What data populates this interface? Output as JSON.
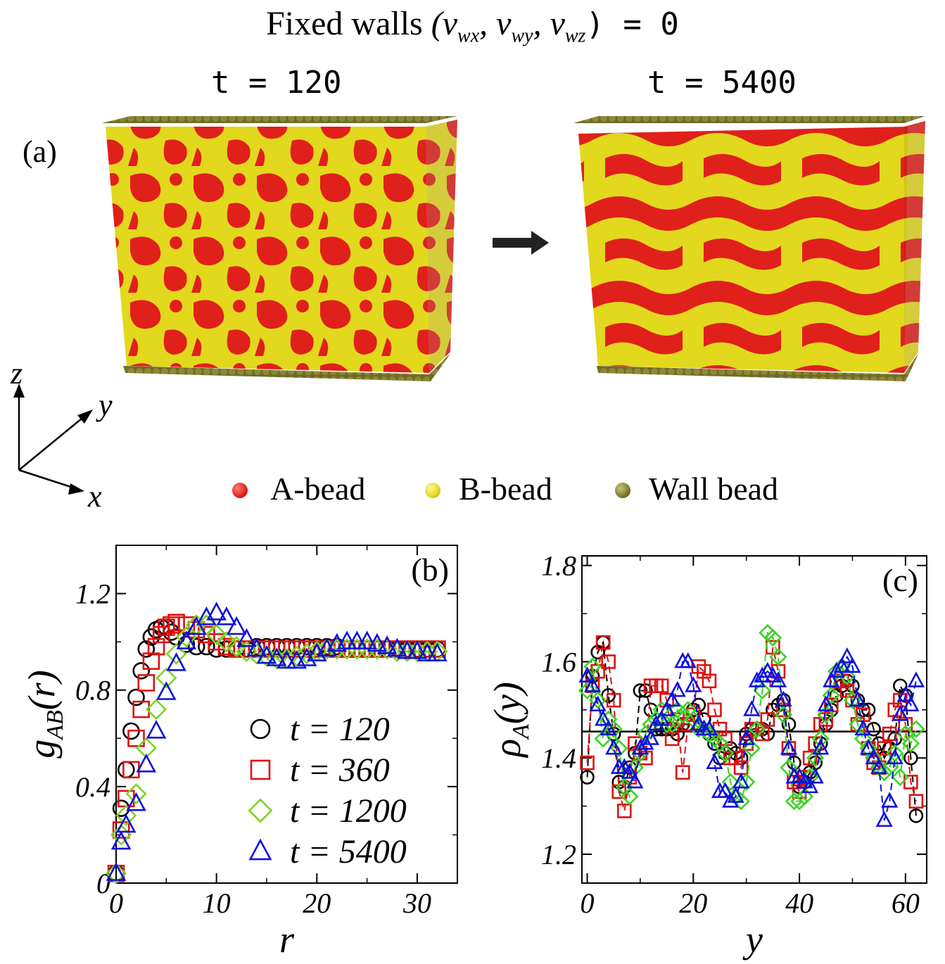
{
  "figure": {
    "title_prefix": "Fixed walls ",
    "title_vars": "(v",
    "title_sub1": "wx",
    "title_sub2": "wy",
    "title_sub3": "wz",
    "title_suffix": ") = 0",
    "panel_a_label": "(a)",
    "time_left": "t = 120",
    "time_right": "t = 5400",
    "bead_legend": [
      "A-bead",
      "B-bead",
      "Wall bead"
    ],
    "bead_colors": [
      "#e0201a",
      "#e2d81e",
      "#7d7a2c"
    ],
    "axes_labels": {
      "z": "z",
      "y": "y",
      "x": "x"
    }
  },
  "chart_data": [
    {
      "type": "scatter",
      "panel": "(b)",
      "xlabel": "r",
      "ylabel": "g_AB(r)",
      "xlim": [
        0,
        34
      ],
      "ylim": [
        0,
        1.4
      ],
      "xticks": [
        0,
        10,
        20,
        30
      ],
      "yticks": [
        0,
        0.4,
        0.8,
        1.2
      ],
      "ytick_labels": [
        "0",
        "0.4",
        "0.8",
        "1.2"
      ],
      "legend_position": "lower-right",
      "series": [
        {
          "name": "t = 120",
          "marker": "circle",
          "color": "#000000",
          "x": [
            0,
            0.5,
            1,
            1.5,
            2,
            2.5,
            3,
            3.5,
            4,
            4.5,
            5,
            5.5,
            6,
            7,
            8,
            9,
            10,
            11,
            12,
            13,
            14,
            15,
            16,
            17,
            18,
            19,
            20,
            21,
            22,
            23,
            24,
            25,
            26,
            27,
            28,
            29,
            30,
            31,
            32
          ],
          "y": [
            0.04,
            0.31,
            0.47,
            0.63,
            0.77,
            0.88,
            0.97,
            1.02,
            1.05,
            1.06,
            1.06,
            1.04,
            1.02,
            0.99,
            0.98,
            0.98,
            0.97,
            0.97,
            0.97,
            0.97,
            0.98,
            0.98,
            0.98,
            0.98,
            0.98,
            0.98,
            0.98,
            0.98,
            0.98,
            0.97,
            0.97,
            0.97,
            0.97,
            0.97,
            0.97,
            0.97,
            0.97,
            0.97,
            0.97
          ]
        },
        {
          "name": "t = 360",
          "marker": "square",
          "color": "#e01010",
          "x": [
            0,
            0.5,
            1,
            1.5,
            2,
            2.5,
            3,
            3.5,
            4,
            4.5,
            5,
            5.5,
            6,
            7,
            8,
            9,
            10,
            11,
            12,
            13,
            14,
            15,
            16,
            17,
            18,
            19,
            20,
            21,
            22,
            23,
            24,
            25,
            26,
            27,
            28,
            29,
            30,
            31,
            32
          ],
          "y": [
            0.04,
            0.22,
            0.35,
            0.47,
            0.6,
            0.72,
            0.83,
            0.92,
            0.98,
            1.03,
            1.06,
            1.07,
            1.08,
            1.07,
            1.05,
            1.03,
            1.0,
            0.98,
            0.97,
            0.97,
            0.97,
            0.97,
            0.97,
            0.97,
            0.97,
            0.97,
            0.97,
            0.97,
            0.97,
            0.97,
            0.97,
            0.97,
            0.97,
            0.97,
            0.97,
            0.97,
            0.97,
            0.97,
            0.97
          ]
        },
        {
          "name": "t = 1200",
          "marker": "diamond",
          "color": "#7ed321",
          "x": [
            0,
            0.5,
            1,
            2,
            3,
            4,
            5,
            6,
            7,
            8,
            9,
            10,
            11,
            12,
            13,
            14,
            15,
            16,
            17,
            18,
            19,
            20,
            21,
            22,
            23,
            24,
            25,
            26,
            27,
            28,
            29,
            30,
            31,
            32
          ],
          "y": [
            0.04,
            0.2,
            0.28,
            0.37,
            0.56,
            0.72,
            0.85,
            0.95,
            1.02,
            1.07,
            1.07,
            1.03,
            1.0,
            0.98,
            0.96,
            0.95,
            0.94,
            0.93,
            0.93,
            0.94,
            0.95,
            0.96,
            0.97,
            0.97,
            0.97,
            0.97,
            0.97,
            0.97,
            0.97,
            0.96,
            0.96,
            0.96,
            0.96,
            0.96
          ]
        },
        {
          "name": "t = 5400",
          "marker": "triangle",
          "color": "#1010e0",
          "x": [
            0,
            0.5,
            1,
            2,
            3,
            4,
            5,
            6,
            7,
            8,
            9,
            10,
            11,
            12,
            13,
            14,
            15,
            16,
            17,
            18,
            19,
            20,
            21,
            22,
            23,
            24,
            25,
            26,
            27,
            28,
            29,
            30,
            31,
            32
          ],
          "y": [
            0.04,
            0.17,
            0.24,
            0.33,
            0.49,
            0.63,
            0.79,
            0.91,
            1.0,
            1.06,
            1.1,
            1.12,
            1.1,
            1.06,
            1.01,
            0.97,
            0.94,
            0.93,
            0.92,
            0.92,
            0.93,
            0.95,
            0.97,
            0.99,
            1.0,
            1.0,
            1.0,
            0.99,
            0.98,
            0.97,
            0.96,
            0.96,
            0.95,
            0.95
          ]
        }
      ]
    },
    {
      "type": "line",
      "panel": "(c)",
      "xlabel": "y",
      "ylabel": "ρ_A(y)",
      "xlim": [
        -1,
        64
      ],
      "ylim": [
        1.14,
        1.82
      ],
      "xticks": [
        0,
        20,
        40,
        60
      ],
      "yticks": [
        1.2,
        1.4,
        1.6,
        1.8
      ],
      "ytick_labels": [
        "1.2",
        "1.4",
        "1.6",
        "1.8"
      ],
      "reference_line": 1.455,
      "series": [
        {
          "name": "t = 120",
          "marker": "circle",
          "color": "#000000",
          "x": [
            0,
            1,
            2,
            3,
            4,
            5,
            6,
            7,
            8,
            9,
            10,
            11,
            12,
            13,
            14,
            15,
            16,
            17,
            18,
            19,
            20,
            21,
            22,
            23,
            24,
            25,
            26,
            27,
            28,
            29,
            30,
            31,
            32,
            33,
            34,
            35,
            36,
            37,
            38,
            39,
            40,
            41,
            42,
            43,
            44,
            45,
            46,
            47,
            48,
            49,
            50,
            51,
            52,
            53,
            54,
            55,
            56,
            57,
            58,
            59,
            60,
            61,
            62
          ],
          "y": [
            1.36,
            1.57,
            1.62,
            1.64,
            1.53,
            1.45,
            1.35,
            1.34,
            1.38,
            1.41,
            1.54,
            1.54,
            1.5,
            1.46,
            1.46,
            1.46,
            1.46,
            1.45,
            1.47,
            1.47,
            1.5,
            1.51,
            1.48,
            1.45,
            1.43,
            1.4,
            1.41,
            1.42,
            1.41,
            1.4,
            1.45,
            1.46,
            1.46,
            1.46,
            1.45,
            1.5,
            1.51,
            1.52,
            1.47,
            1.39,
            1.34,
            1.35,
            1.37,
            1.39,
            1.43,
            1.47,
            1.5,
            1.53,
            1.55,
            1.56,
            1.55,
            1.52,
            1.5,
            1.5,
            1.46,
            1.43,
            1.4,
            1.42,
            1.44,
            1.55,
            1.53,
            1.4,
            1.28
          ]
        },
        {
          "name": "t = 360",
          "marker": "square",
          "color": "#e01010",
          "x": [
            0,
            1,
            2,
            3,
            4,
            5,
            6,
            7,
            8,
            9,
            10,
            11,
            12,
            13,
            14,
            15,
            16,
            17,
            18,
            19,
            20,
            21,
            22,
            23,
            24,
            25,
            26,
            27,
            28,
            29,
            30,
            31,
            32,
            33,
            34,
            35,
            36,
            37,
            38,
            39,
            40,
            41,
            42,
            43,
            44,
            45,
            46,
            47,
            48,
            49,
            50,
            51,
            52,
            53,
            54,
            55,
            56,
            57,
            58,
            59,
            60,
            61,
            62
          ],
          "y": [
            1.39,
            1.55,
            1.58,
            1.64,
            1.6,
            1.52,
            1.33,
            1.29,
            1.36,
            1.43,
            1.41,
            1.4,
            1.55,
            1.55,
            1.55,
            1.52,
            1.44,
            1.48,
            1.37,
            1.47,
            1.49,
            1.59,
            1.58,
            1.56,
            1.5,
            1.46,
            1.44,
            1.4,
            1.4,
            1.38,
            1.43,
            1.46,
            1.46,
            1.45,
            1.48,
            1.63,
            1.58,
            1.5,
            1.42,
            1.35,
            1.33,
            1.36,
            1.4,
            1.43,
            1.47,
            1.48,
            1.51,
            1.56,
            1.56,
            1.54,
            1.52,
            1.47,
            1.49,
            1.42,
            1.39,
            1.38,
            1.42,
            1.45,
            1.5,
            1.52,
            1.47,
            1.35,
            1.31
          ]
        },
        {
          "name": "t = 1200",
          "marker": "diamond",
          "color": "#3ad421",
          "x": [
            0,
            1,
            2,
            3,
            4,
            5,
            6,
            7,
            8,
            9,
            10,
            11,
            12,
            13,
            14,
            15,
            16,
            17,
            18,
            19,
            20,
            21,
            22,
            23,
            24,
            25,
            26,
            27,
            28,
            29,
            30,
            31,
            32,
            33,
            34,
            35,
            36,
            37,
            38,
            39,
            40,
            41,
            42,
            43,
            44,
            45,
            46,
            47,
            48,
            49,
            50,
            51,
            52,
            53,
            54,
            55,
            56,
            57,
            58,
            59,
            60,
            61,
            62
          ],
          "y": [
            1.54,
            1.59,
            1.52,
            1.44,
            1.48,
            1.46,
            1.42,
            1.34,
            1.32,
            1.38,
            1.41,
            1.45,
            1.47,
            1.48,
            1.5,
            1.47,
            1.47,
            1.5,
            1.49,
            1.5,
            1.48,
            1.46,
            1.46,
            1.45,
            1.44,
            1.43,
            1.41,
            1.35,
            1.32,
            1.31,
            1.35,
            1.42,
            1.46,
            1.54,
            1.66,
            1.65,
            1.61,
            1.49,
            1.38,
            1.31,
            1.31,
            1.32,
            1.36,
            1.4,
            1.44,
            1.49,
            1.53,
            1.58,
            1.59,
            1.57,
            1.52,
            1.47,
            1.44,
            1.42,
            1.4,
            1.38,
            1.37,
            1.38,
            1.41,
            1.36,
            1.45,
            1.43,
            1.46
          ]
        },
        {
          "name": "t = 5400",
          "marker": "triangle",
          "color": "#1010e0",
          "x": [
            0,
            1,
            2,
            3,
            4,
            5,
            6,
            7,
            8,
            9,
            10,
            11,
            12,
            13,
            14,
            15,
            16,
            17,
            18,
            19,
            20,
            21,
            22,
            23,
            24,
            25,
            26,
            27,
            28,
            29,
            30,
            31,
            32,
            33,
            34,
            35,
            36,
            37,
            38,
            39,
            40,
            41,
            42,
            43,
            44,
            45,
            46,
            47,
            48,
            49,
            50,
            51,
            52,
            53,
            54,
            55,
            56,
            57,
            58,
            59,
            60,
            61,
            62
          ],
          "y": [
            1.57,
            1.55,
            1.51,
            1.48,
            1.46,
            1.42,
            1.38,
            1.38,
            1.37,
            1.35,
            1.42,
            1.43,
            1.44,
            1.47,
            1.48,
            1.5,
            1.52,
            1.54,
            1.6,
            1.6,
            1.55,
            1.47,
            1.46,
            1.46,
            1.39,
            1.33,
            1.33,
            1.31,
            1.32,
            1.35,
            1.44,
            1.5,
            1.56,
            1.57,
            1.58,
            1.57,
            1.56,
            1.52,
            1.42,
            1.36,
            1.36,
            1.35,
            1.34,
            1.36,
            1.42,
            1.51,
            1.56,
            1.58,
            1.59,
            1.61,
            1.59,
            1.52,
            1.46,
            1.42,
            1.4,
            1.38,
            1.27,
            1.31,
            1.4,
            1.49,
            1.53,
            1.51,
            1.56
          ]
        }
      ]
    }
  ]
}
